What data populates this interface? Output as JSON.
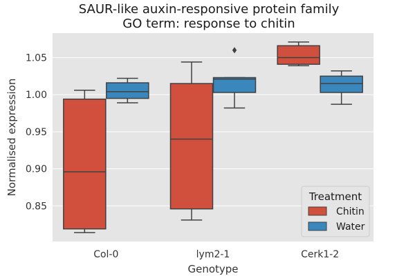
{
  "chart_data": {
    "type": "boxplot",
    "title": "SAUR-like auxin-responsive protein family",
    "subtitle": "GO term: response to chitin",
    "xlabel": "Genotype",
    "ylabel": "Normalised expression",
    "ylim": [
      0.802,
      1.083
    ],
    "yticks": [
      0.85,
      0.9,
      0.95,
      1.0,
      1.05
    ],
    "ytick_labels": [
      "0.85",
      "0.90",
      "0.95",
      "1.00",
      "1.05"
    ],
    "categories": [
      "Col-0",
      "lym2-1",
      "Cerk1-2"
    ],
    "grid": true,
    "legend": {
      "title": "Treatment",
      "position": "lower-right"
    },
    "series": [
      {
        "name": "Chitin",
        "color": "#d1503d",
        "boxes": [
          {
            "whislo": 0.814,
            "q1": 0.819,
            "med": 0.896,
            "q3": 0.994,
            "whishi": 1.006,
            "fliers": []
          },
          {
            "whislo": 0.831,
            "q1": 0.846,
            "med": 0.94,
            "q3": 1.015,
            "whishi": 1.044,
            "fliers": []
          },
          {
            "whislo": 1.039,
            "q1": 1.041,
            "med": 1.05,
            "q3": 1.066,
            "whishi": 1.071,
            "fliers": []
          }
        ]
      },
      {
        "name": "Water",
        "color": "#3a87bd",
        "boxes": [
          {
            "whislo": 0.989,
            "q1": 0.995,
            "med": 1.004,
            "q3": 1.016,
            "whishi": 1.022,
            "fliers": []
          },
          {
            "whislo": 0.982,
            "q1": 1.003,
            "med": 1.021,
            "q3": 1.023,
            "whishi": 1.023,
            "fliers": [
              1.06
            ]
          },
          {
            "whislo": 0.987,
            "q1": 1.003,
            "med": 1.015,
            "q3": 1.025,
            "whishi": 1.032,
            "fliers": []
          }
        ]
      }
    ]
  }
}
